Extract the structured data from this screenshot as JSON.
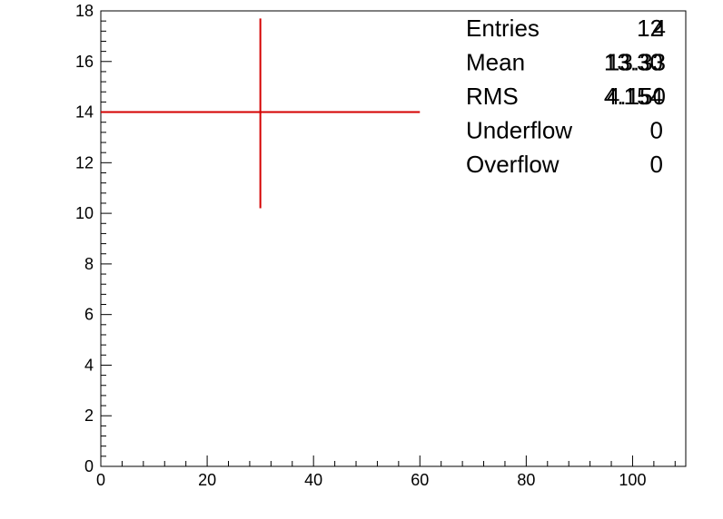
{
  "chart_data": {
    "type": "scatter",
    "title": "",
    "xlabel": "",
    "ylabel": "",
    "xlim": [
      0,
      110
    ],
    "ylim": [
      0,
      18
    ],
    "grid": false,
    "x_ticks": [
      0,
      20,
      40,
      60,
      80,
      100
    ],
    "y_ticks": [
      0,
      2,
      4,
      6,
      8,
      10,
      12,
      14,
      16,
      18
    ],
    "series": [
      {
        "color": "#d40000",
        "points": [
          {
            "x": 30,
            "y": 14,
            "x_err_low": 30,
            "x_err_high": 30,
            "y_err_low": 3.8,
            "y_err_high": 3.7
          }
        ]
      }
    ],
    "stats_box": {
      "rows": [
        {
          "label": "Entries",
          "values": [
            "12",
            "4"
          ]
        },
        {
          "label": "Mean",
          "values": [
            "13.30",
            "13.33"
          ]
        },
        {
          "label": "RMS",
          "values": [
            "4.154",
            "4.150"
          ]
        },
        {
          "label": "Underflow",
          "values": [
            "0"
          ]
        },
        {
          "label": "Overflow",
          "values": [
            "0"
          ]
        }
      ]
    }
  }
}
